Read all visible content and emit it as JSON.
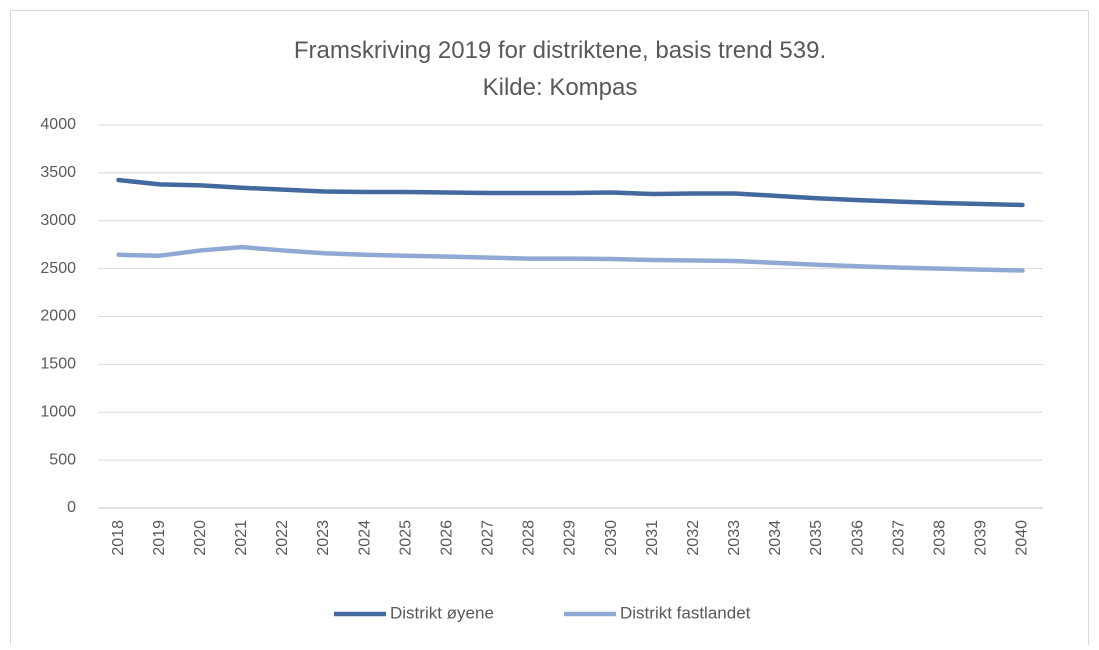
{
  "chart_data": {
    "type": "line",
    "title": "Framskriving 2019 for distriktene, basis trend 539.",
    "subtitle": "Kilde: Kompas",
    "categories": [
      "2018",
      "2019",
      "2020",
      "2021",
      "2022",
      "2023",
      "2024",
      "2025",
      "2026",
      "2027",
      "2028",
      "2029",
      "2030",
      "2031",
      "2032",
      "2033",
      "2034",
      "2035",
      "2036",
      "2037",
      "2038",
      "2039",
      "2040"
    ],
    "series": [
      {
        "name": "Distrikt øyene",
        "color": "#44699e",
        "values": [
          3425,
          3380,
          3370,
          3345,
          3325,
          3305,
          3300,
          3300,
          3295,
          3290,
          3290,
          3290,
          3295,
          3280,
          3285,
          3285,
          3260,
          3235,
          3215,
          3200,
          3185,
          3175,
          3165
        ]
      },
      {
        "name": "Distrikt fastlandet",
        "color": "#8fa9d4",
        "values": [
          2645,
          2635,
          2690,
          2725,
          2690,
          2660,
          2645,
          2635,
          2625,
          2615,
          2605,
          2605,
          2600,
          2590,
          2585,
          2580,
          2560,
          2540,
          2525,
          2510,
          2500,
          2490,
          2480
        ]
      }
    ],
    "ylim": [
      0,
      4000
    ],
    "yticks": [
      0,
      500,
      1000,
      1500,
      2000,
      2500,
      3000,
      3500,
      4000
    ],
    "grid": true,
    "legend": "bottom"
  }
}
